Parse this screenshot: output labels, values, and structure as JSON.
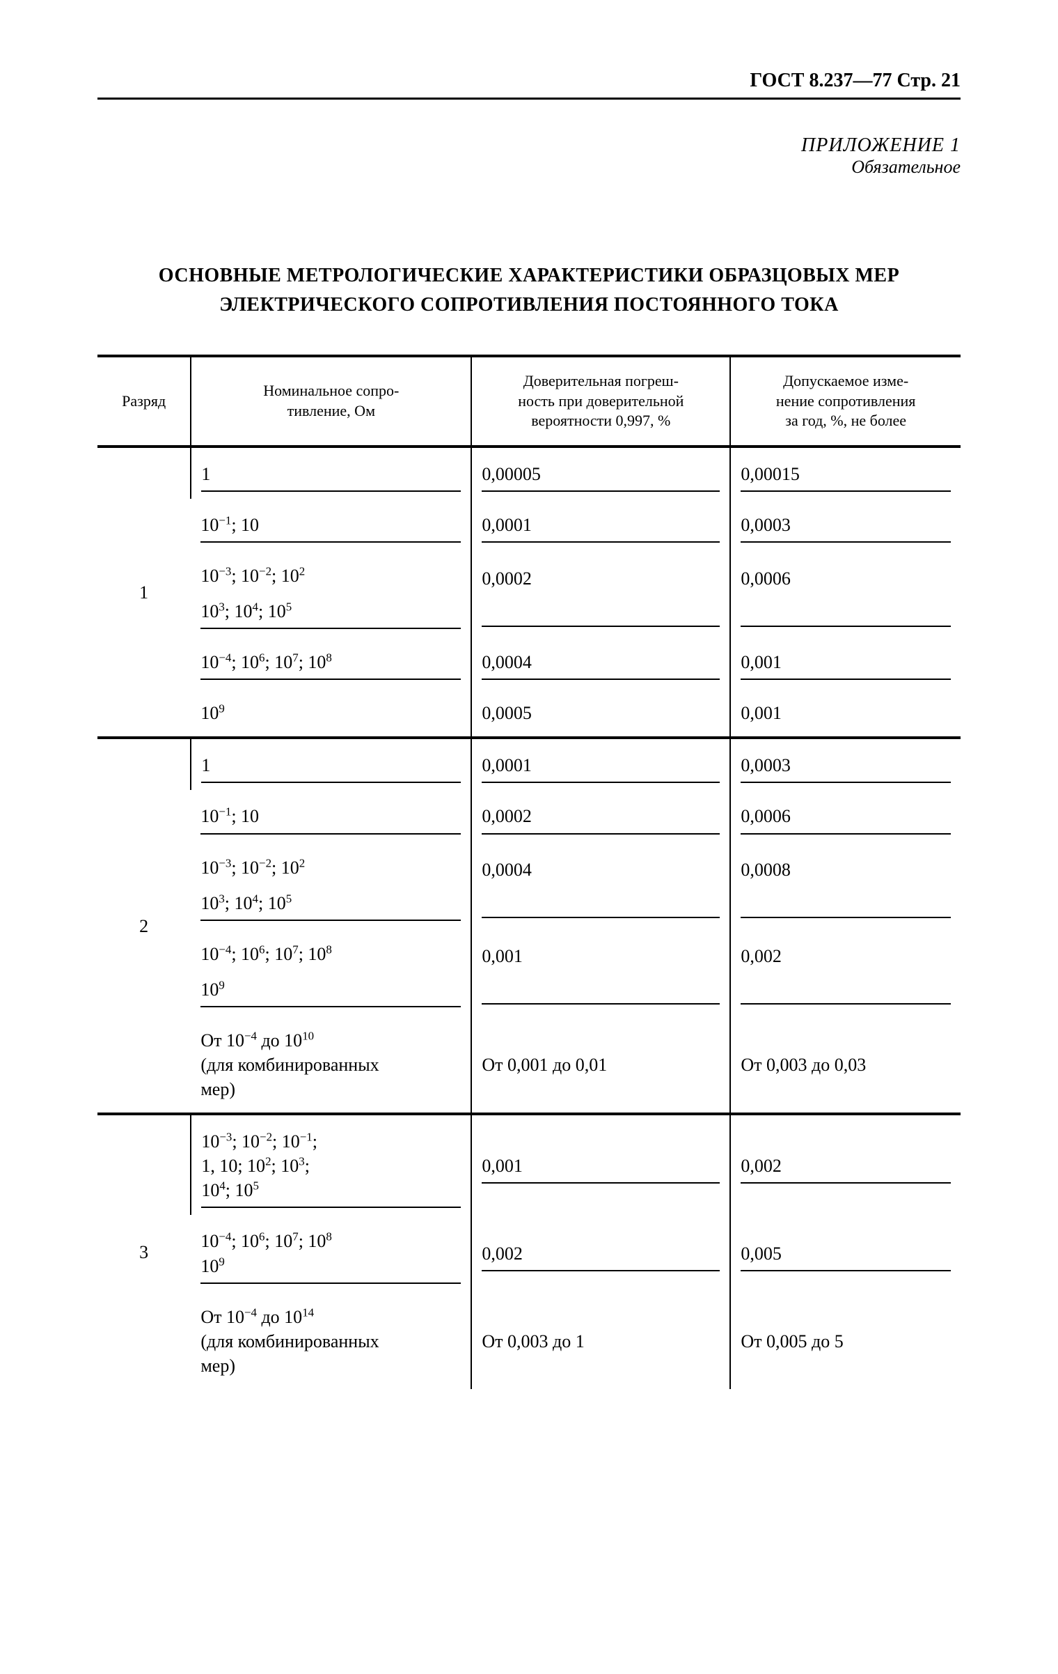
{
  "header_ref": "ГОСТ 8.237—77 Стр. 21",
  "appendix": {
    "title": "ПРИЛОЖЕНИЕ 1",
    "subtitle": "Обязательное"
  },
  "main_title": "ОСНОВНЫЕ МЕТРОЛОГИЧЕСКИЕ ХАРАКТЕРИСТИКИ ОБРАЗЦОВЫХ МЕР ЭЛЕКТРИЧЕСКОГО СОПРОТИВЛЕНИЯ ПОСТОЯННОГО ТОКА",
  "table": {
    "headers": {
      "rank": "Разряд",
      "nominal": "Номинальное сопро-\nтивление, Ом",
      "error": "Доверительная погреш-\nность при доверительной\nвероятности 0,997, %",
      "change": "Допускаемое изме-\nнение сопротивления\nза год, %, не более"
    },
    "groups": [
      {
        "rank": "1",
        "rows": [
          {
            "nominal_html": "1",
            "error": "0,00005",
            "change": "0,00015"
          },
          {
            "nominal_html": "10<sup>−1</sup>; 10",
            "error": "0,0001",
            "change": "0,0003"
          },
          {
            "nominal_html": "10<sup>−3</sup>; 10<sup>−2</sup>; 10<sup>2</sup>",
            "error": "0,0002",
            "change": "0,0006",
            "merge_nominal_with_next": true
          },
          {
            "nominal_html": "10<sup>3</sup>; 10<sup>4</sup>; 10<sup>5</sup>",
            "error": "",
            "change": ""
          },
          {
            "nominal_html": "10<sup>−4</sup>; 10<sup>6</sup>; 10<sup>7</sup>; 10<sup>8</sup>",
            "error": "0,0004",
            "change": "0,001"
          },
          {
            "nominal_html": "10<sup>9</sup>",
            "error": "0,0005",
            "change": "0,001"
          }
        ]
      },
      {
        "rank": "2",
        "rows": [
          {
            "nominal_html": "1",
            "error": "0,0001",
            "change": "0,0003"
          },
          {
            "nominal_html": "10<sup>−1</sup>; 10",
            "error": "0,0002",
            "change": "0,0006"
          },
          {
            "nominal_html": "10<sup>−3</sup>; 10<sup>−2</sup>; 10<sup>2</sup>",
            "error": "0,0004",
            "change": "0,0008",
            "merge_nominal_with_next": true
          },
          {
            "nominal_html": "10<sup>3</sup>; 10<sup>4</sup>; 10<sup>5</sup>",
            "error": "",
            "change": ""
          },
          {
            "nominal_html": "10<sup>−4</sup>; 10<sup>6</sup>; 10<sup>7</sup>; 10<sup>8</sup>",
            "error": "0,001",
            "change": "0,002",
            "merge_nominal_with_next": true
          },
          {
            "nominal_html": "10<sup>9</sup>",
            "error": "",
            "change": ""
          },
          {
            "nominal_html": "От 10<sup>−4</sup> до 10<sup>10</sup><br>(для комбинированных<br>мер)",
            "error": "От 0,001 до 0,01",
            "change": "От 0,003 до 0,03"
          }
        ]
      },
      {
        "rank": "3",
        "rows": [
          {
            "nominal_html": "10<sup>−3</sup>; 10<sup>−2</sup>; 10<sup>−1</sup>;<br>1, 10; 10<sup>2</sup>; 10<sup>3</sup>;<br>10<sup>4</sup>; 10<sup>5</sup>",
            "error": "0,001",
            "change": "0,002"
          },
          {
            "nominal_html": "10<sup>−4</sup>; 10<sup>6</sup>; 10<sup>7</sup>; 10<sup>8</sup><br>10<sup>9</sup>",
            "error": "0,002",
            "change": "0,005"
          },
          {
            "nominal_html": "От 10<sup>−4</sup> до 10<sup>14</sup><br>(для комбинированных<br>мер)",
            "error": "От 0,003 до 1",
            "change": "От 0,005 до 5"
          }
        ]
      }
    ]
  }
}
